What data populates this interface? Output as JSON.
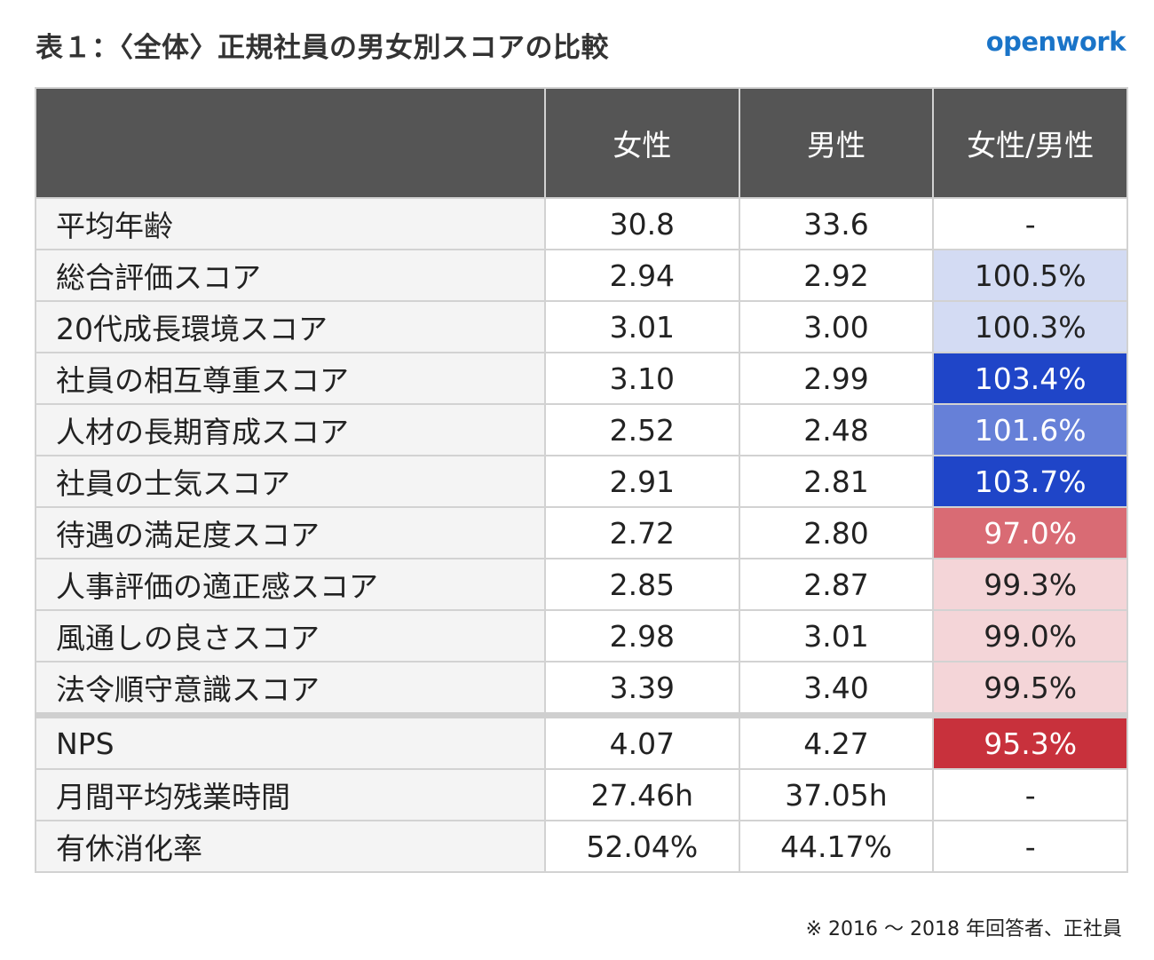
{
  "title": "表１：〈全体〉正規社員の男女別スコアの比較",
  "logo": "openwork",
  "headers": [
    "",
    "女性",
    "男性",
    "女性/男性"
  ],
  "rows": [
    {
      "label": "平均年齢",
      "female": "30.8",
      "male": "33.6",
      "ratio": "-",
      "bg": "#ffffff",
      "fg": "#222222"
    },
    {
      "label": "総合評価スコア",
      "female": "2.94",
      "male": "2.92",
      "ratio": "100.5%",
      "bg": "#d3dbf3",
      "fg": "#222222"
    },
    {
      "label": "20代成長環境スコア",
      "female": "3.01",
      "male": "3.00",
      "ratio": "100.3%",
      "bg": "#d3dbf3",
      "fg": "#222222"
    },
    {
      "label": "社員の相互尊重スコア",
      "female": "3.10",
      "male": "2.99",
      "ratio": "103.4%",
      "bg": "#1f45c8",
      "fg": "#ffffff"
    },
    {
      "label": "人材の長期育成スコア",
      "female": "2.52",
      "male": "2.48",
      "ratio": "101.6%",
      "bg": "#6680d8",
      "fg": "#ffffff"
    },
    {
      "label": "社員の士気スコア",
      "female": "2.91",
      "male": "2.81",
      "ratio": "103.7%",
      "bg": "#1f45c8",
      "fg": "#ffffff"
    },
    {
      "label": "待遇の満足度スコア",
      "female": "2.72",
      "male": "2.80",
      "ratio": "97.0%",
      "bg": "#d96b74",
      "fg": "#ffffff"
    },
    {
      "label": "人事評価の適正感スコア",
      "female": "2.85",
      "male": "2.87",
      "ratio": "99.3%",
      "bg": "#f4d5d8",
      "fg": "#222222"
    },
    {
      "label": "風通しの良さスコア",
      "female": "2.98",
      "male": "3.01",
      "ratio": "99.0%",
      "bg": "#f4d5d8",
      "fg": "#222222"
    },
    {
      "label": "法令順守意識スコア",
      "female": "3.39",
      "male": "3.40",
      "ratio": "99.5%",
      "bg": "#f4d5d8",
      "fg": "#222222"
    },
    {
      "label": "NPS",
      "female": "4.07",
      "male": "4.27",
      "ratio": "95.3%",
      "bg": "#c8313c",
      "fg": "#ffffff"
    },
    {
      "label": "月間平均残業時間",
      "female": "27.46h",
      "male": "37.05h",
      "ratio": "-",
      "bg": "#ffffff",
      "fg": "#222222"
    },
    {
      "label": "有休消化率",
      "female": "52.04%",
      "male": "44.17%",
      "ratio": "-",
      "bg": "#ffffff",
      "fg": "#222222"
    }
  ],
  "note": "※ 2016 ～ 2018 年回答者、正社員"
}
